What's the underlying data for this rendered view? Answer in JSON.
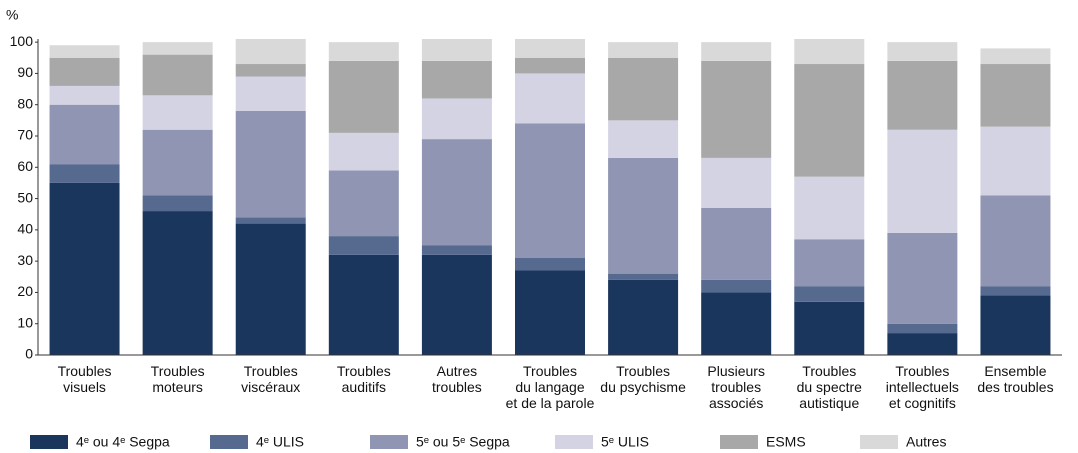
{
  "chart_data": {
    "type": "stacked_bar",
    "y_unit": "%",
    "categories": [
      [
        "Troubles",
        "visuels"
      ],
      [
        "Troubles",
        "moteurs"
      ],
      [
        "Troubles",
        "viscéraux"
      ],
      [
        "Troubles",
        "auditifs"
      ],
      [
        "Autres",
        "troubles"
      ],
      [
        "Troubles",
        "du langage",
        "et de la parole"
      ],
      [
        "Troubles",
        "du psychisme"
      ],
      [
        "Plusieurs",
        "troubles",
        "associés"
      ],
      [
        "Troubles",
        "du spectre",
        "autistique"
      ],
      [
        "Troubles",
        "intellectuels",
        "et cognitifs"
      ],
      [
        "Ensemble",
        "des troubles"
      ]
    ],
    "series": [
      {
        "name": "4ᵉ ou 4ᵉ Segpa",
        "color": "#1b365d",
        "values": [
          55,
          46,
          42,
          32,
          32,
          27,
          24,
          20,
          17,
          7,
          19
        ]
      },
      {
        "name": "4ᵉ ULIS",
        "color": "#56698f",
        "values": [
          6,
          5,
          2,
          6,
          3,
          4,
          2,
          4,
          5,
          3,
          3
        ]
      },
      {
        "name": "5ᵉ ou 5ᵉ Segpa",
        "color": "#8f95b2",
        "values": [
          19,
          21,
          34,
          21,
          34,
          43,
          37,
          23,
          15,
          29,
          29
        ]
      },
      {
        "name": "5ᵉ ULIS",
        "color": "#d3d3e3",
        "values": [
          6,
          11,
          11,
          12,
          13,
          16,
          12,
          16,
          20,
          33,
          22
        ]
      },
      {
        "name": "ESMS",
        "color": "#a8a8a8",
        "values": [
          9,
          13,
          4,
          23,
          12,
          5,
          20,
          31,
          36,
          22,
          20
        ]
      },
      {
        "name": "Autres",
        "color": "#d9d9d9",
        "values": [
          4,
          4,
          8,
          6,
          7,
          6,
          5,
          6,
          8,
          6,
          5
        ]
      }
    ],
    "ylim": [
      0,
      101
    ],
    "yticks": [
      0,
      10,
      20,
      30,
      40,
      50,
      60,
      70,
      80,
      90,
      100
    ]
  }
}
